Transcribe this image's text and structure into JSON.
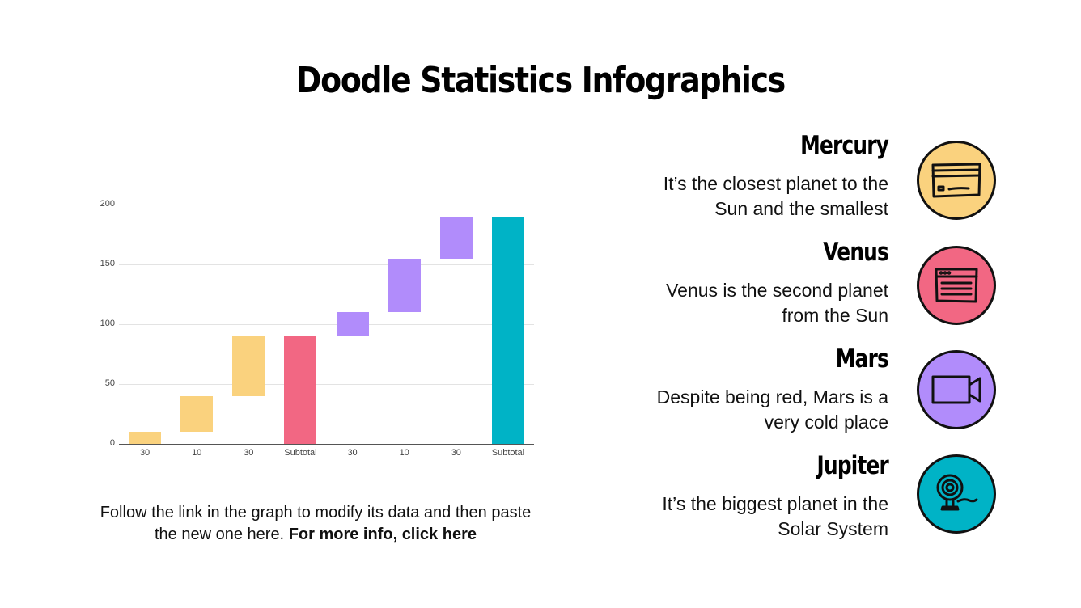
{
  "title": "Doodle Statistics Infographics",
  "chart_data": {
    "type": "waterfall",
    "title": "",
    "xlabel": "",
    "ylabel": "",
    "ylim": [
      0,
      200
    ],
    "yticks": [
      0,
      50,
      100,
      150,
      200
    ],
    "grid": true,
    "legend": "none",
    "categories": [
      "30",
      "10",
      "30",
      "Subtotal",
      "30",
      "10",
      "30",
      "Subtotal"
    ],
    "bars": [
      {
        "label": "30",
        "start": 0,
        "end": 10,
        "color": "#FAD27E"
      },
      {
        "label": "10",
        "start": 10,
        "end": 40,
        "color": "#FAD27E"
      },
      {
        "label": "30",
        "start": 40,
        "end": 90,
        "color": "#FAD27E"
      },
      {
        "label": "Subtotal",
        "start": 0,
        "end": 90,
        "color": "#F26783"
      },
      {
        "label": "30",
        "start": 90,
        "end": 110,
        "color": "#B18CFB"
      },
      {
        "label": "10",
        "start": 110,
        "end": 155,
        "color": "#B18CFB"
      },
      {
        "label": "30",
        "start": 155,
        "end": 190,
        "color": "#B18CFB"
      },
      {
        "label": "Subtotal",
        "start": 0,
        "end": 190,
        "color": "#00B3C6"
      }
    ]
  },
  "caption": {
    "text": "Follow the link in the graph to modify its data and then paste the new one here. ",
    "link": "For more info, click here"
  },
  "items": [
    {
      "title": "Mercury",
      "line1": "It’s the closest planet to the",
      "line2": "Sun and the smallest",
      "icon": "credit-card-icon",
      "color": "#FAD27E"
    },
    {
      "title": "Venus",
      "line1": "Venus is the second planet",
      "line2": "from the Sun",
      "icon": "browser-window-icon",
      "color": "#F26783"
    },
    {
      "title": "Mars",
      "line1": "Despite being red, Mars is a",
      "line2": "very cold place",
      "icon": "video-camera-icon",
      "color": "#B18CFB"
    },
    {
      "title": "Jupiter",
      "line1": "It’s the biggest planet in the",
      "line2": "Solar System",
      "icon": "webcam-icon",
      "color": "#00B3C6"
    }
  ]
}
